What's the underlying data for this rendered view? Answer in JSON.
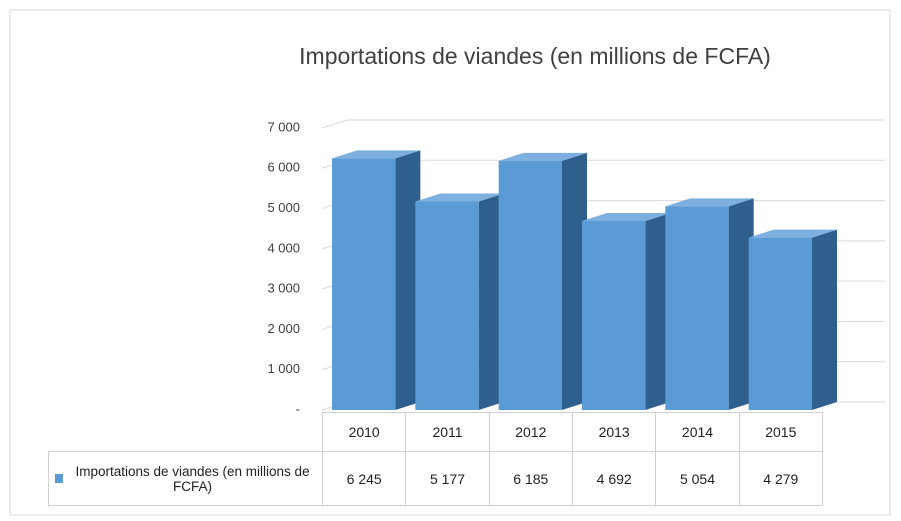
{
  "chart_data": {
    "type": "bar3d",
    "title": "Importations de viandes (en millions de FCFA)",
    "categories": [
      "2010",
      "2011",
      "2012",
      "2013",
      "2014",
      "2015"
    ],
    "series": [
      {
        "name": "Importations de viandes (en millions de FCFA)",
        "color": "#5b9bd5",
        "values": [
          6245,
          5177,
          6185,
          4692,
          5054,
          4279
        ],
        "value_labels": [
          "6 245",
          "5 177",
          "6 185",
          "4 692",
          "5 054",
          "4 279"
        ]
      }
    ],
    "ylim": [
      0,
      7000
    ],
    "yticks": [
      {
        "value": 0,
        "label": "-"
      },
      {
        "value": 1000,
        "label": "1 000"
      },
      {
        "value": 2000,
        "label": "2 000"
      },
      {
        "value": 3000,
        "label": "3 000"
      },
      {
        "value": 4000,
        "label": "4 000"
      },
      {
        "value": 5000,
        "label": "5 000"
      },
      {
        "value": 6000,
        "label": "6 000"
      },
      {
        "value": 7000,
        "label": "7 000"
      }
    ],
    "grid": true
  }
}
